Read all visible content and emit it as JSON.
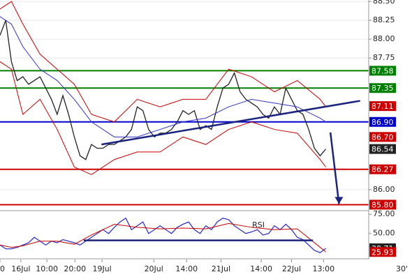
{
  "chart_data": {
    "type": "line",
    "xlim": [
      0,
      129
    ],
    "xticks": [
      {
        "value": 0,
        "label": "0"
      },
      {
        "value": 7.3,
        "label": "16Jul"
      },
      {
        "value": 16.4,
        "label": "10:00"
      },
      {
        "value": 26.2,
        "label": "20:00"
      },
      {
        "value": 35.7,
        "label": "19Jul"
      },
      {
        "value": 53.8,
        "label": "20Jul"
      },
      {
        "value": 65.3,
        "label": "14:00"
      },
      {
        "value": 77.3,
        "label": "21Jul"
      },
      {
        "value": 91.4,
        "label": "14:00"
      },
      {
        "value": 102,
        "label": "22Jul"
      },
      {
        "value": 113.2,
        "label": "13:00"
      }
    ],
    "timeframe": "30'",
    "price_panel": {
      "ylim": [
        85.73,
        88.52
      ],
      "yticks": [
        {
          "value": 88.5,
          "label": "88.50"
        },
        {
          "value": 88.25,
          "label": "88.25"
        },
        {
          "value": 88.0,
          "label": "88.00"
        },
        {
          "value": 87.75,
          "label": "87.75"
        },
        {
          "value": 86.0,
          "label": "86.00"
        }
      ],
      "grid": true,
      "series": [
        {
          "name": "close",
          "color": "#222222",
          "x": [
            0,
            2,
            4,
            6,
            8,
            10,
            12,
            14,
            16,
            18,
            20,
            22,
            24,
            26,
            28,
            30,
            32,
            34,
            36,
            38,
            40,
            42,
            44,
            46,
            48,
            50,
            52,
            54,
            56,
            58,
            60,
            62,
            64,
            66,
            68,
            70,
            72,
            74,
            76,
            78,
            80,
            82,
            84,
            86,
            88,
            90,
            92,
            94,
            96,
            98,
            100,
            102,
            104,
            106,
            108,
            110,
            112,
            114
          ],
          "values": [
            88.05,
            88.25,
            87.7,
            87.45,
            87.5,
            87.4,
            87.45,
            87.5,
            87.35,
            87.2,
            87.0,
            87.25,
            87.0,
            86.7,
            86.45,
            86.4,
            86.6,
            86.55,
            86.55,
            86.6,
            86.6,
            86.65,
            86.7,
            86.8,
            87.1,
            87.05,
            86.8,
            86.7,
            86.75,
            86.75,
            86.8,
            86.9,
            87.05,
            87.0,
            87.05,
            86.8,
            86.85,
            86.8,
            87.1,
            87.35,
            87.4,
            87.55,
            87.3,
            87.2,
            87.15,
            87.1,
            87.0,
            86.95,
            87.1,
            87.0,
            87.35,
            87.2,
            87.05,
            87.0,
            86.8,
            86.55,
            86.45,
            86.54
          ]
        },
        {
          "name": "upper band",
          "color": "#cc0000",
          "x": [
            0,
            4,
            8,
            14,
            20,
            26,
            32,
            40,
            48,
            56,
            64,
            72,
            80,
            88,
            96,
            104,
            112,
            114
          ],
          "values": [
            88.4,
            88.5,
            88.2,
            87.8,
            87.6,
            87.4,
            87.0,
            86.9,
            87.2,
            87.1,
            87.2,
            87.2,
            87.6,
            87.5,
            87.3,
            87.45,
            87.2,
            87.1
          ]
        },
        {
          "name": "lower band",
          "color": "#cc0000",
          "x": [
            0,
            4,
            8,
            14,
            20,
            26,
            32,
            40,
            48,
            56,
            64,
            72,
            80,
            88,
            96,
            104,
            112,
            114
          ],
          "values": [
            87.7,
            87.6,
            87.0,
            87.2,
            86.8,
            86.3,
            86.2,
            86.4,
            86.5,
            86.5,
            86.7,
            86.6,
            86.8,
            86.9,
            86.8,
            86.75,
            86.4,
            86.3
          ]
        },
        {
          "name": "moving average",
          "color": "#3333cc",
          "x": [
            0,
            4,
            8,
            14,
            20,
            26,
            32,
            40,
            48,
            56,
            64,
            72,
            80,
            88,
            96,
            104,
            112,
            114
          ],
          "values": [
            88.3,
            88.2,
            87.9,
            87.6,
            87.45,
            87.2,
            86.9,
            86.7,
            86.7,
            86.8,
            86.9,
            86.95,
            87.1,
            87.2,
            87.15,
            87.1,
            86.95,
            86.9
          ]
        }
      ],
      "levels": [
        {
          "value": 87.58,
          "label": "87.58",
          "color": "#008000"
        },
        {
          "value": 87.35,
          "label": "87.35",
          "color": "#008000"
        },
        {
          "value": 86.9,
          "label": "86.90",
          "color": "#0000cc"
        },
        {
          "value": 86.27,
          "label": "86.27",
          "color": "#cc0000"
        },
        {
          "value": 85.8,
          "label": "85.80",
          "color": "#cc0000"
        }
      ],
      "price_labels": [
        {
          "value": 87.11,
          "label": "87.11",
          "color": "#cc0000"
        },
        {
          "value": 86.7,
          "label": "86.70",
          "color": "#cc0000"
        },
        {
          "value": 86.54,
          "label": "86.54",
          "color": "#222222"
        }
      ],
      "trendline": {
        "x": [
          35.5,
          126
        ],
        "values": [
          86.6,
          87.18
        ],
        "color": "#1a237e"
      },
      "arrow": {
        "x": [
          115.6,
          118.6
        ],
        "values": [
          86.76,
          85.81
        ],
        "color": "#1a237e"
      }
    },
    "rsi_panel": {
      "title": "RSI",
      "ylim": [
        18,
        77
      ],
      "yticks": [
        {
          "value": 75,
          "label": "75.00"
        },
        {
          "value": 50,
          "label": "50.00"
        }
      ],
      "series": [
        {
          "name": "rsi",
          "color": "#3333cc",
          "x": [
            0,
            2,
            4,
            6,
            8,
            10,
            12,
            14,
            16,
            18,
            20,
            22,
            24,
            26,
            28,
            30,
            32,
            34,
            36,
            38,
            40,
            42,
            44,
            46,
            48,
            50,
            52,
            54,
            56,
            58,
            60,
            62,
            64,
            66,
            68,
            70,
            72,
            74,
            76,
            78,
            80,
            82,
            84,
            86,
            88,
            90,
            92,
            94,
            96,
            98,
            100,
            102,
            104,
            106,
            108,
            110,
            112,
            114
          ],
          "values": [
            35,
            30,
            30,
            32,
            35,
            38,
            45,
            40,
            35,
            40,
            38,
            42,
            40,
            38,
            35,
            40,
            45,
            50,
            55,
            50,
            58,
            65,
            70,
            55,
            60,
            65,
            50,
            55,
            60,
            55,
            50,
            58,
            62,
            65,
            55,
            50,
            60,
            55,
            65,
            70,
            68,
            60,
            55,
            50,
            52,
            55,
            48,
            50,
            60,
            55,
            62,
            55,
            45,
            42,
            35,
            28,
            25,
            30.71
          ]
        },
        {
          "name": "rsi signal",
          "color": "#cc0000",
          "x": [
            0,
            4,
            8,
            14,
            20,
            26,
            32,
            40,
            48,
            56,
            64,
            72,
            80,
            88,
            96,
            104,
            112,
            114
          ],
          "values": [
            35,
            32,
            34,
            40,
            40,
            36,
            48,
            62,
            58,
            56,
            57,
            56,
            63,
            58,
            55,
            56,
            32,
            25.93
          ]
        }
      ],
      "value_labels": [
        {
          "value": 30.71,
          "label": "30.71",
          "color": "#222222"
        },
        {
          "value": 25.93,
          "label": "25.93",
          "color": "#cc0000"
        }
      ],
      "trendline": {
        "x": [
          29.3,
          109.5
        ],
        "values": [
          41,
          41
        ],
        "color": "#1a237e"
      }
    }
  }
}
